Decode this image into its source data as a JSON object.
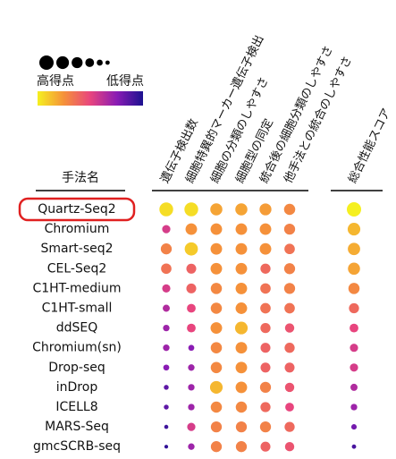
{
  "chart_data": {
    "type": "dot_matrix",
    "row_header": "手法名",
    "legend_high": "高得点",
    "legend_low": "低得点",
    "legend_scores": [
      1,
      0.85,
      0.7,
      0.5,
      0.25,
      0.1
    ],
    "colormap": [
      "#1c1190",
      "#8a1cb4",
      "#e8457e",
      "#f5913a",
      "#f5f020"
    ],
    "columns": [
      "遺伝子検出数",
      "細胞特異的マーカー遺伝子検出",
      "細胞の分類のしやすさ",
      "細胞型の同定",
      "統合後の細胞分類のしやすさ",
      "他手法との統合のしやすさ",
      "総合性能スコア"
    ],
    "categories": [
      "Quartz-Seq2",
      "Chromium",
      "Smart-seq2",
      "CEL-Seq2",
      "C1HT-medium",
      "C1HT-small",
      "ddSEQ",
      "Chromium(sn)",
      "Drop-seq",
      "inDrop",
      "ICELL8",
      "MARS-Seq",
      "gmcSCRB-seq"
    ],
    "values": [
      [
        0.95,
        0.95,
        0.8,
        0.8,
        0.78,
        0.72,
        1.0
      ],
      [
        0.45,
        0.75,
        0.75,
        0.75,
        0.75,
        0.7,
        0.85
      ],
      [
        0.7,
        0.9,
        0.75,
        0.75,
        0.75,
        0.65,
        0.82
      ],
      [
        0.65,
        0.6,
        0.75,
        0.75,
        0.62,
        0.7,
        0.8
      ],
      [
        0.45,
        0.6,
        0.72,
        0.75,
        0.65,
        0.7,
        0.72
      ],
      [
        0.35,
        0.5,
        0.72,
        0.75,
        0.65,
        0.65,
        0.62
      ],
      [
        0.3,
        0.5,
        0.75,
        0.85,
        0.62,
        0.55,
        0.5
      ],
      [
        0.3,
        0.25,
        0.72,
        0.75,
        0.6,
        0.62,
        0.45
      ],
      [
        0.25,
        0.3,
        0.72,
        0.75,
        0.6,
        0.6,
        0.45
      ],
      [
        0.15,
        0.3,
        0.85,
        0.75,
        0.7,
        0.55,
        0.35
      ],
      [
        0.15,
        0.3,
        0.72,
        0.72,
        0.62,
        0.5,
        0.3
      ],
      [
        0.08,
        0.45,
        0.7,
        0.7,
        0.7,
        0.62,
        0.2
      ],
      [
        0.05,
        0.3,
        0.7,
        0.7,
        0.6,
        0.55,
        0.1
      ]
    ]
  }
}
